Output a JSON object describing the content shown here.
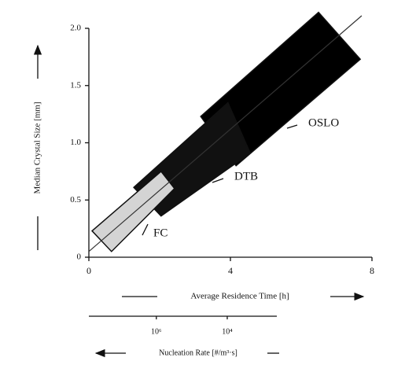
{
  "chart_data": {
    "type": "region",
    "xlabel": "Average Residence Time [h]",
    "ylabel": "Median Crystal Size [mm]",
    "xlim": [
      0,
      8
    ],
    "xticks": [
      0,
      4,
      8
    ],
    "ylim": [
      0,
      2.0
    ],
    "yticks": [
      0,
      0.5,
      {
        "value": 1,
        "label": "1.0"
      },
      1.5,
      {
        "value": 2,
        "label": "2.0"
      }
    ],
    "regions": [
      {
        "name": "OSLO",
        "color": "#000000",
        "x": [
          3.16,
          6.49,
          7.67,
          4.16
        ],
        "y": [
          1.23,
          2.14,
          1.73,
          0.8
        ]
      },
      {
        "name": "DTB",
        "color": "#111111",
        "x": [
          1.27,
          3.93,
          4.56,
          2.04
        ],
        "y": [
          0.61,
          1.35,
          0.91,
          0.36
        ]
      },
      {
        "name": "FC",
        "color": "#d4d4d4",
        "x": [
          0.09,
          2.04,
          2.42,
          0.64
        ],
        "y": [
          0.23,
          0.75,
          0.6,
          0.05
        ]
      }
    ],
    "trend_line": {
      "x": [
        0,
        7.71
      ],
      "y": [
        0.05,
        2.11
      ]
    },
    "nucleation_axis": {
      "label": "Nucleation Rate [#/m³·s]",
      "log": true,
      "lim": [
        80000000,
        400
      ],
      "ticks": [
        {
          "value": 1000000,
          "label": "10⁶"
        },
        {
          "value": 10000,
          "label": "10⁴"
        }
      ]
    }
  }
}
